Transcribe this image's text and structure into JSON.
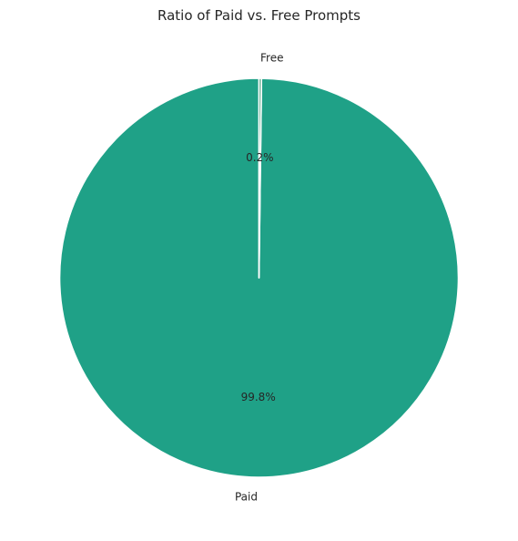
{
  "chart_data": {
    "type": "pie",
    "title": "Ratio of Paid vs. Free Prompts",
    "slices": [
      {
        "label": "Paid",
        "value": 99.8,
        "pct_label": "99.8%",
        "color": "#1fa187"
      },
      {
        "label": "Free",
        "value": 0.2,
        "pct_label": "0.2%",
        "color": "#3b9a74"
      }
    ],
    "start_angle": "top (12 o'clock)",
    "direction": "counterclockwise",
    "slice_edge_color": "#ffffff"
  }
}
